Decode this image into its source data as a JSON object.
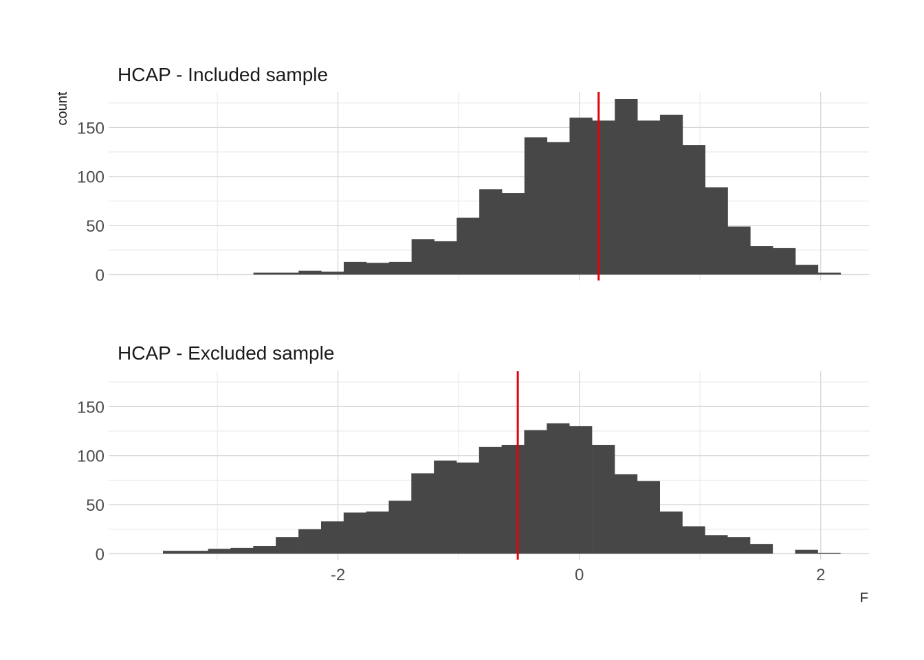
{
  "chart_data": [
    {
      "type": "bar",
      "subtype": "histogram",
      "title": "HCAP - Included sample",
      "ylabel": "count",
      "xlabel": "",
      "xlim": [
        -3.9,
        2.4
      ],
      "ylim": [
        -6,
        186
      ],
      "x_ticks": [
        -2,
        0,
        2
      ],
      "x_tick_labels": [
        "-2",
        "0",
        "2"
      ],
      "x_tick_labels_shown": false,
      "y_ticks": [
        0,
        50,
        100,
        150
      ],
      "y_tick_labels": [
        "0",
        "50",
        "100",
        "150"
      ],
      "grid": true,
      "bin_width": 0.1871,
      "bins_start": [
        -2.7,
        -2.513,
        -2.326,
        -2.139,
        -1.952,
        -1.765,
        -1.577,
        -1.39,
        -1.203,
        -1.016,
        -0.829,
        -0.642,
        -0.455,
        -0.268,
        -0.081,
        0.107,
        0.294,
        0.481,
        0.668,
        0.855,
        1.042,
        1.229,
        1.416,
        1.603,
        1.79,
        1.977
      ],
      "values": [
        2,
        2,
        4,
        3,
        13,
        12,
        13,
        36,
        34,
        58,
        87,
        83,
        140,
        135,
        160,
        157,
        179,
        157,
        163,
        132,
        89,
        49,
        29,
        27,
        10,
        2
      ],
      "reference_line_x": 0.16,
      "reference_line_color": "#e8000b"
    },
    {
      "type": "bar",
      "subtype": "histogram",
      "title": "HCAP - Excluded sample",
      "ylabel": "",
      "xlabel": "F",
      "xlim": [
        -3.9,
        2.4
      ],
      "ylim": [
        -6,
        186
      ],
      "x_ticks": [
        -2,
        0,
        2
      ],
      "x_tick_labels": [
        "-2",
        "0",
        "2"
      ],
      "x_tick_labels_shown": true,
      "y_ticks": [
        0,
        50,
        100,
        150
      ],
      "y_tick_labels": [
        "0",
        "50",
        "100",
        "150"
      ],
      "grid": true,
      "bin_width": 0.1871,
      "bins_start": [
        -3.45,
        -3.263,
        -3.076,
        -2.889,
        -2.702,
        -2.515,
        -2.327,
        -2.14,
        -1.953,
        -1.766,
        -1.579,
        -1.392,
        -1.205,
        -1.018,
        -0.831,
        -0.644,
        -0.457,
        -0.27,
        -0.083,
        0.105,
        0.292,
        0.479,
        0.666,
        0.853,
        1.04,
        1.227,
        1.414,
        1.601,
        1.788,
        1.975
      ],
      "values": [
        3,
        3,
        5,
        6,
        8,
        17,
        25,
        33,
        42,
        43,
        54,
        82,
        95,
        93,
        109,
        111,
        126,
        133,
        130,
        111,
        81,
        74,
        43,
        28,
        19,
        17,
        10,
        0,
        4,
        1
      ],
      "reference_line_x": -0.51,
      "reference_line_color": "#e8000b"
    }
  ],
  "colors": {
    "bar": "#474747",
    "reference_line": "#e8000b",
    "grid": "#d6d6d6"
  }
}
